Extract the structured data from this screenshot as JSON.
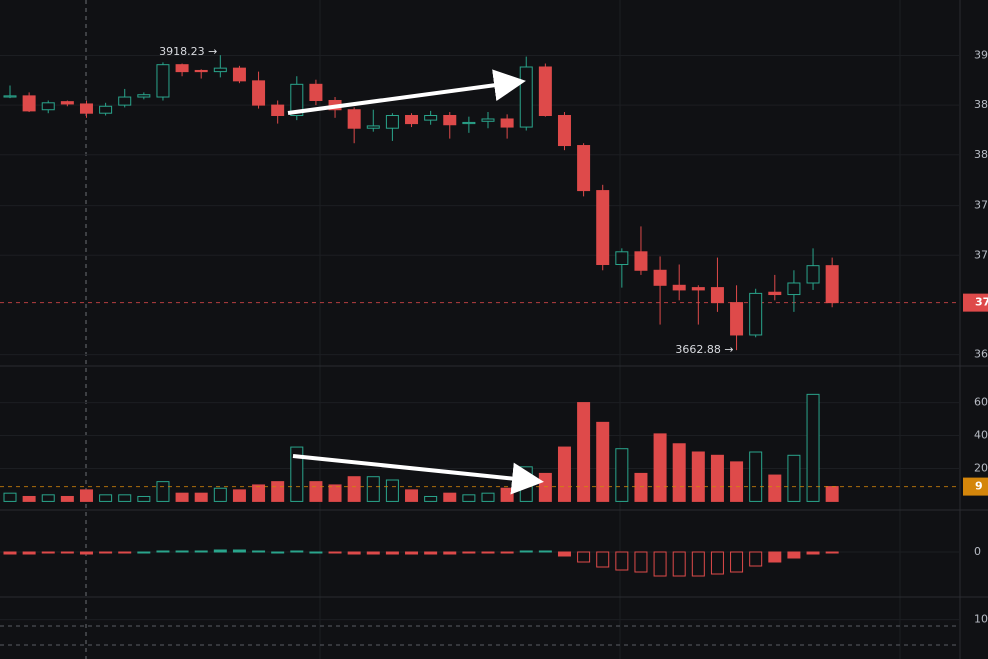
{
  "chart_data": [
    {
      "type": "candlestick",
      "up_color": "#2aa58c",
      "down_color": "#de4a4a",
      "open": [
        3882,
        3883,
        3871,
        3878,
        3876,
        3868,
        3875,
        3882,
        3882,
        3910,
        3905,
        3904,
        3907,
        3896,
        3875,
        3866,
        3893,
        3879,
        3871,
        3855,
        3855,
        3866,
        3862,
        3866,
        3859,
        3861,
        3863,
        3856,
        3908,
        3866,
        3840,
        3801,
        3737,
        3748,
        3732,
        3719,
        3717,
        3717,
        3704,
        3676,
        3713,
        3711,
        3721,
        3736
      ],
      "high": [
        3892,
        3886,
        3879,
        3879,
        3879,
        3877,
        3889,
        3886,
        3912,
        3911,
        3906,
        3918.23,
        3909,
        3904,
        3879,
        3900,
        3897,
        3882,
        3873,
        3871,
        3868,
        3868,
        3870,
        3869,
        3865,
        3869,
        3867,
        3917,
        3911,
        3869,
        3842,
        3806,
        3751,
        3770,
        3744,
        3737,
        3719,
        3743,
        3719,
        3716,
        3728,
        3732,
        3751,
        3743
      ],
      "low": [
        3881,
        3869,
        3868,
        3874,
        3864,
        3866,
        3873,
        3880,
        3879,
        3900,
        3898,
        3899,
        3894,
        3872,
        3859,
        3862,
        3875,
        3864,
        3842,
        3852,
        3844,
        3856,
        3858,
        3846,
        3851,
        3855,
        3846,
        3853,
        3865,
        3836,
        3796,
        3732,
        3717,
        3728,
        3685,
        3706,
        3685,
        3696,
        3662.88,
        3674,
        3706,
        3696,
        3715,
        3700
      ],
      "close": [
        3883,
        3870,
        3877,
        3876,
        3868,
        3874,
        3882,
        3884,
        3910,
        3904,
        3904,
        3907,
        3896,
        3875,
        3866,
        3893,
        3879,
        3871,
        3855,
        3857,
        3866,
        3859,
        3866,
        3858,
        3860,
        3863,
        3856,
        3908,
        3866,
        3840,
        3801,
        3737,
        3748,
        3732,
        3719,
        3715,
        3715,
        3704,
        3676,
        3712,
        3711,
        3721,
        3736,
        3704
      ],
      "ylim": [
        3650,
        3966
      ],
      "yticks": [
        {
          "value": 3918,
          "label": "39"
        },
        {
          "value": 3875,
          "label": "38"
        },
        {
          "value": 3832,
          "label": "38"
        },
        {
          "value": 3788,
          "label": "37"
        },
        {
          "value": 3745,
          "label": "37"
        },
        {
          "value": 3659,
          "label": "36"
        }
      ],
      "price_tag": {
        "value": 3704,
        "label": "37",
        "color": "#de4a4a"
      },
      "annotations": [
        "3918.23 →",
        "3662.88 →"
      ]
    },
    {
      "type": "volume",
      "values": [
        5,
        3,
        4,
        3,
        7,
        4,
        4,
        3,
        12,
        5,
        5,
        8,
        7,
        10,
        12,
        33,
        12,
        10,
        15,
        15,
        13,
        7,
        3,
        5,
        4,
        5,
        8,
        21,
        17,
        33,
        60,
        48,
        32,
        17,
        41,
        35,
        30,
        28,
        24,
        30,
        16,
        28,
        65,
        9
      ],
      "ylim": [
        -4,
        81
      ],
      "yticks": [
        {
          "value": 60,
          "label": "60"
        },
        {
          "value": 40,
          "label": "40"
        },
        {
          "value": 20,
          "label": "20"
        }
      ],
      "value_tag": {
        "value": 9,
        "label": "9",
        "color": "#d4860b"
      }
    },
    {
      "type": "macd",
      "values": [
        -2,
        -2,
        -1,
        -1,
        -2,
        -1,
        -1,
        0,
        1,
        1,
        1,
        2,
        2,
        1,
        0,
        1,
        0,
        -1,
        -2,
        -2,
        -2,
        -2,
        -2,
        -2,
        -1,
        -1,
        -1,
        1,
        1,
        -4,
        -10,
        -15,
        -18,
        -20,
        -24,
        -24,
        -24,
        -22,
        -20,
        -14,
        -10,
        -6,
        -2,
        -1
      ],
      "ylim": [
        -43,
        40
      ],
      "yticks": [
        {
          "value": 0,
          "label": "0"
        }
      ]
    },
    {
      "type": "kdj",
      "ylim": [
        -24,
        162
      ],
      "yticks": [
        {
          "value": 100,
          "label": "10"
        }
      ],
      "levels": [
        80,
        20
      ]
    }
  ]
}
